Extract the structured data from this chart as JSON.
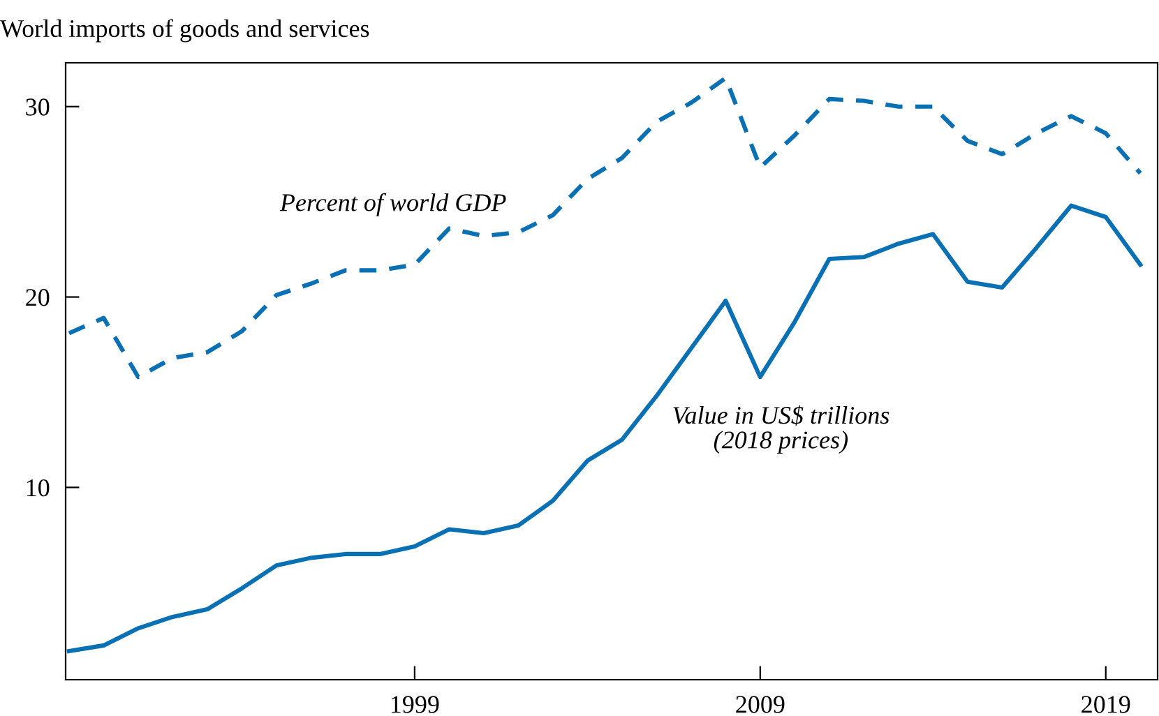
{
  "chart_data": {
    "type": "line",
    "title": "World imports of goods and services",
    "x": [
      1989,
      1990,
      1991,
      1992,
      1993,
      1994,
      1995,
      1996,
      1997,
      1998,
      1999,
      2000,
      2001,
      2002,
      2003,
      2004,
      2005,
      2006,
      2007,
      2008,
      2009,
      2010,
      2011,
      2012,
      2013,
      2014,
      2015,
      2016,
      2017,
      2018,
      2019,
      2020
    ],
    "series": [
      {
        "name": "Percent of world GDP",
        "color": "#0a70b4",
        "line_style": "dashed",
        "values": [
          18.1,
          18.9,
          15.8,
          16.8,
          17.1,
          18.2,
          20.1,
          20.7,
          21.4,
          21.4,
          21.7,
          23.6,
          23.2,
          23.4,
          24.3,
          26.2,
          27.3,
          29.2,
          30.2,
          31.5,
          26.8,
          28.5,
          30.4,
          30.3,
          30.0,
          30.0,
          28.2,
          27.5,
          28.6,
          29.5,
          28.6,
          26.5
        ]
      },
      {
        "name": "Value in US$ trillions\n(2018 prices)",
        "color": "#0a70b4",
        "line_style": "solid",
        "values": [
          1.4,
          1.7,
          2.6,
          3.2,
          3.6,
          4.7,
          5.9,
          6.3,
          6.5,
          6.5,
          6.9,
          7.8,
          7.6,
          8.0,
          9.3,
          11.4,
          12.5,
          14.8,
          17.3,
          19.8,
          15.8,
          18.7,
          22.0,
          22.1,
          22.8,
          23.3,
          20.8,
          20.5,
          22.6,
          24.8,
          24.2,
          21.7
        ]
      }
    ],
    "xlim": [
      1988.9,
      2020.5
    ],
    "ylim": [
      -0.1,
      32.3
    ],
    "xticks": [
      1999,
      2009,
      2019
    ],
    "yticks": [
      10,
      20,
      30
    ],
    "grid": false,
    "legend": false,
    "marker": "none"
  }
}
